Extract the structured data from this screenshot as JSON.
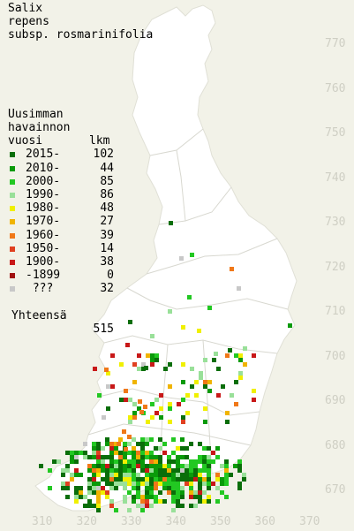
{
  "title": {
    "line1": "Salix",
    "line2": "repens",
    "line3": "subsp. rosmarinifolia"
  },
  "legend": {
    "header_line1": "Uusimman",
    "header_line2": "havainnon",
    "header_col1": "vuosi",
    "header_col2": "lkm",
    "items": [
      {
        "label": "2015-",
        "count": "102",
        "color": "#0a6e0a"
      },
      {
        "label": "2010-",
        "count": "44",
        "color": "#0a9a0a"
      },
      {
        "label": "2000-",
        "count": "85",
        "color": "#22c822"
      },
      {
        "label": "1990-",
        "count": "86",
        "color": "#99e099"
      },
      {
        "label": "1980-",
        "count": "48",
        "color": "#f0f000"
      },
      {
        "label": "1970-",
        "count": "27",
        "color": "#f0b400"
      },
      {
        "label": "1960-",
        "count": "39",
        "color": "#f07818"
      },
      {
        "label": "1950-",
        "count": "14",
        "color": "#e04020"
      },
      {
        "label": "1900-",
        "count": "38",
        "color": "#c81818"
      },
      {
        "label": "-1899",
        "count": "0",
        "color": "#a01010"
      },
      {
        "label": " ???",
        "count": "32",
        "color": "#c8c8c8"
      }
    ],
    "total_label": "Yhteensä",
    "total_count": "515"
  },
  "axes": {
    "y_ticks": [
      "770",
      "760",
      "750",
      "740",
      "730",
      "720",
      "710",
      "700",
      "690",
      "680",
      "670"
    ],
    "x_ticks": [
      "310",
      "320",
      "330",
      "340",
      "350",
      "360",
      "370"
    ]
  },
  "colors": {
    "background": "#f2f2e8",
    "land": "#ffffff",
    "border": "#d8d8d0",
    "tick": "#cfcfc4"
  }
}
